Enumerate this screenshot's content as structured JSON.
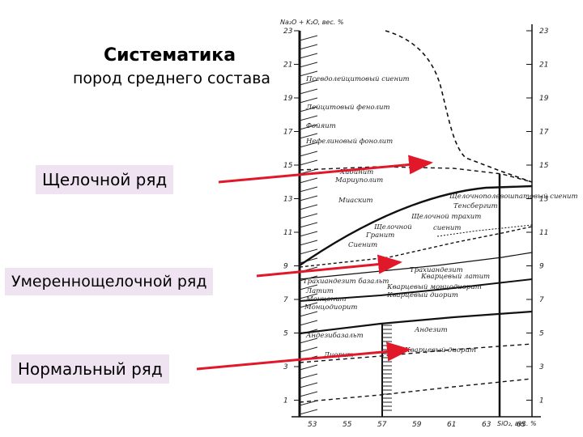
{
  "title": "Систематика",
  "subtitle": "пород среднего состава",
  "series_labels": [
    {
      "id": "lbl-1",
      "text": "Щелочной ряд"
    },
    {
      "id": "lbl-2",
      "text": "Умереннощелочной ряд"
    },
    {
      "id": "lbl-3",
      "text": "Нормальный ряд"
    }
  ],
  "accent_color": "#e0182a",
  "label_bg_color": "#efe3f2",
  "diagram": {
    "y_axis_title": "Na₂O + K₂O, вес. %",
    "x_axis_title": "SiO₂, вес. %",
    "y_ticks_left": [
      "23",
      "21",
      "19",
      "17",
      "15",
      "13",
      "11",
      "9",
      "7",
      "5",
      "3",
      "1"
    ],
    "y_ticks_right": [
      "23",
      "21",
      "19",
      "17",
      "15",
      "13",
      "11",
      "9",
      "7",
      "5",
      "3",
      "1"
    ],
    "x_ticks": [
      "53",
      "55",
      "57",
      "59",
      "61",
      "63",
      "65"
    ],
    "fields": [
      "Псевдолейцитовый сиенит",
      "Лейцитовый фенолит",
      "Фойяит",
      "Нефелиновый фонолит",
      "Хибинит",
      "Мариуполит",
      "Миаскит",
      "Щелочнополевошпатовый сиенит",
      "Тенсбергит",
      "Щелочной трахит",
      "Щелочной",
      "сиенит",
      "Гранит",
      "Сиенит",
      "Трахиандезит",
      "Кварцевый латит",
      "Трахиандезит базальт",
      "Латит",
      "Монцонит",
      "Монцодиорит",
      "Кварцевый монцодиорит",
      "Кварцевый диорит",
      "Андезибазальт",
      "Андезит",
      "Диорит",
      "Кварцевый диорит"
    ]
  }
}
